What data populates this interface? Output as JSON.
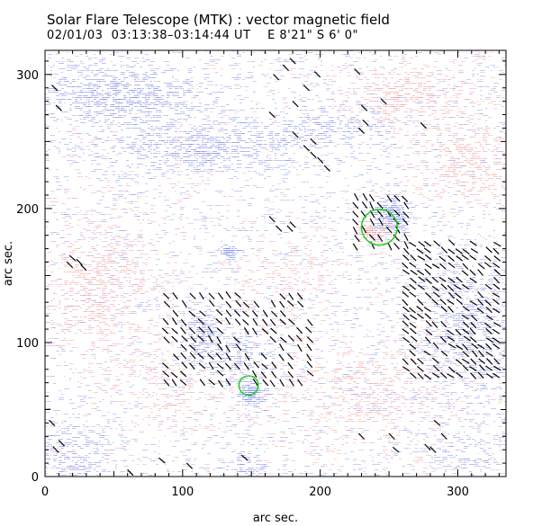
{
  "header": {
    "title": "Solar Flare Telescope (MTK) : vector magnetic field",
    "subtitle_date": "02/01/03",
    "subtitle_time": "03:13:38–03:14:44 UT",
    "subtitle_pos": "E 8'21\"   S 6' 0\""
  },
  "chart_data": {
    "type": "scatter",
    "title": "Solar Flare Telescope (MTK) : vector magnetic field",
    "xlabel": "arc sec.",
    "ylabel": "arc sec.",
    "xlim": [
      0,
      335
    ],
    "ylim": [
      0,
      318
    ],
    "x_ticks": [
      0,
      100,
      200,
      300
    ],
    "y_ticks": [
      0,
      100,
      200,
      300
    ],
    "x_tick_labels": [
      "0",
      "100",
      "200",
      "300"
    ],
    "y_tick_labels": [
      "0",
      "100",
      "200",
      "300"
    ],
    "colors": {
      "negative_polarity": "#6f7fe6",
      "positive_polarity": "#f08a8a",
      "circle": "#22cc22",
      "vector": "#000000"
    },
    "circles": [
      {
        "name": "active-region-circle",
        "cx": 243,
        "cy": 186,
        "r": 13
      },
      {
        "name": "flare-site-circle",
        "cx": 148,
        "cy": 68,
        "r": 7
      }
    ],
    "patches": [
      {
        "polarity": "negative",
        "cx": 55,
        "cy": 285,
        "rx": 55,
        "ry": 22,
        "strength": 0.45
      },
      {
        "polarity": "negative",
        "cx": 110,
        "cy": 245,
        "rx": 70,
        "ry": 18,
        "strength": 0.35
      },
      {
        "polarity": "negative",
        "cx": 200,
        "cy": 260,
        "rx": 50,
        "ry": 16,
        "strength": 0.25
      },
      {
        "polarity": "negative",
        "cx": 250,
        "cy": 196,
        "rx": 12,
        "ry": 12,
        "strength": 0.95
      },
      {
        "polarity": "negative",
        "cx": 132,
        "cy": 168,
        "rx": 6,
        "ry": 6,
        "strength": 0.9
      },
      {
        "polarity": "negative",
        "cx": 148,
        "cy": 62,
        "rx": 9,
        "ry": 8,
        "strength": 0.95
      },
      {
        "polarity": "negative",
        "cx": 112,
        "cy": 105,
        "rx": 10,
        "ry": 18,
        "strength": 0.55
      },
      {
        "polarity": "negative",
        "cx": 140,
        "cy": 90,
        "rx": 25,
        "ry": 20,
        "strength": 0.35
      },
      {
        "polarity": "negative",
        "cx": 305,
        "cy": 110,
        "rx": 35,
        "ry": 50,
        "strength": 0.3
      },
      {
        "polarity": "negative",
        "cx": 20,
        "cy": 15,
        "rx": 30,
        "ry": 25,
        "strength": 0.3
      },
      {
        "polarity": "negative",
        "cx": 145,
        "cy": 8,
        "rx": 12,
        "ry": 12,
        "strength": 0.35
      },
      {
        "polarity": "negative",
        "cx": 305,
        "cy": 15,
        "rx": 25,
        "ry": 20,
        "strength": 0.2
      },
      {
        "polarity": "positive",
        "cx": 238,
        "cy": 183,
        "rx": 10,
        "ry": 8,
        "strength": 0.8
      },
      {
        "polarity": "positive",
        "cx": 260,
        "cy": 285,
        "rx": 40,
        "ry": 20,
        "strength": 0.3
      },
      {
        "polarity": "positive",
        "cx": 305,
        "cy": 235,
        "rx": 35,
        "ry": 35,
        "strength": 0.25
      },
      {
        "polarity": "positive",
        "cx": 40,
        "cy": 140,
        "rx": 45,
        "ry": 50,
        "strength": 0.25
      },
      {
        "polarity": "positive",
        "cx": 230,
        "cy": 60,
        "rx": 60,
        "ry": 40,
        "strength": 0.2
      },
      {
        "polarity": "positive",
        "cx": 180,
        "cy": 150,
        "rx": 40,
        "ry": 30,
        "strength": 0.15
      },
      {
        "polarity": "positive",
        "cx": 90,
        "cy": 60,
        "rx": 40,
        "ry": 30,
        "strength": 0.15
      }
    ],
    "vector_regions": [
      {
        "name": "east-plage-vectors",
        "x0": 262,
        "x1": 333,
        "y0": 75,
        "y1": 178,
        "step": 5.5,
        "angle": -40
      },
      {
        "name": "central-plage-vectors",
        "x0": 88,
        "x1": 195,
        "y0": 70,
        "y1": 140,
        "step": 6.5,
        "angle": -50
      },
      {
        "name": "spot-vectors",
        "x0": 226,
        "x1": 262,
        "y0": 172,
        "y1": 210,
        "step": 6,
        "angle": -55
      }
    ],
    "vector_scatter": [
      [
        62,
        3,
        -45
      ],
      [
        85,
        12,
        -40
      ],
      [
        105,
        8,
        -45
      ],
      [
        145,
        14,
        -40
      ],
      [
        230,
        30,
        -45
      ],
      [
        252,
        30,
        -45
      ],
      [
        255,
        20,
        -40
      ],
      [
        278,
        22,
        -45
      ],
      [
        282,
        20,
        -45
      ],
      [
        285,
        40,
        -40
      ],
      [
        290,
        30,
        -45
      ],
      [
        8,
        20,
        -45
      ],
      [
        12,
        25,
        -45
      ],
      [
        5,
        40,
        -45
      ],
      [
        20,
        163,
        -40
      ],
      [
        25,
        160,
        -45
      ],
      [
        28,
        156,
        -45
      ],
      [
        18,
        158,
        -45
      ],
      [
        165,
        192,
        -45
      ],
      [
        170,
        185,
        -45
      ],
      [
        178,
        185,
        -45
      ],
      [
        180,
        188,
        -45
      ],
      [
        165,
        270,
        -45
      ],
      [
        168,
        298,
        -45
      ],
      [
        180,
        310,
        -45
      ],
      [
        182,
        278,
        -45
      ],
      [
        190,
        290,
        -45
      ],
      [
        198,
        300,
        -45
      ],
      [
        175,
        305,
        -45
      ],
      [
        182,
        255,
        -45
      ],
      [
        190,
        245,
        -45
      ],
      [
        195,
        250,
        -45
      ],
      [
        195,
        240,
        -45
      ],
      [
        200,
        236,
        -45
      ],
      [
        205,
        230,
        -45
      ],
      [
        230,
        258,
        -45
      ],
      [
        232,
        275,
        -45
      ],
      [
        227,
        302,
        -45
      ],
      [
        275,
        262,
        -45
      ],
      [
        10,
        275,
        -45
      ],
      [
        7,
        290,
        -45
      ],
      [
        233,
        264,
        -45
      ],
      [
        246,
        280,
        -45
      ]
    ]
  }
}
